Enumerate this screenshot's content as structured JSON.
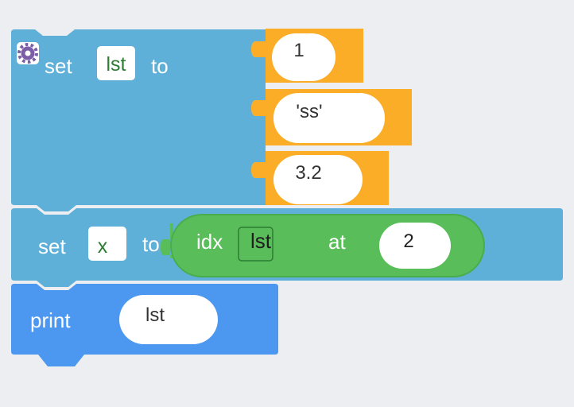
{
  "set_list_block": {
    "set_label": "set",
    "var_name": "lst",
    "to_label": "to",
    "items": [
      "1",
      "'ss'",
      "3.2"
    ]
  },
  "set_x_block": {
    "set_label": "set",
    "var_name": "x",
    "to_label": "to",
    "index_block": {
      "idx_label": "idx",
      "list_var": "lst",
      "at_label": "at",
      "index_value": "2"
    }
  },
  "print_block": {
    "print_label": "print",
    "arg": "lst"
  },
  "colors": {
    "background": "#eceef1",
    "variables_blue": "#5eb0d8",
    "list_orange": "#fbad27",
    "index_green": "#59be5a",
    "print_blue": "#4c97ef",
    "slot_white": "#ffffff"
  }
}
